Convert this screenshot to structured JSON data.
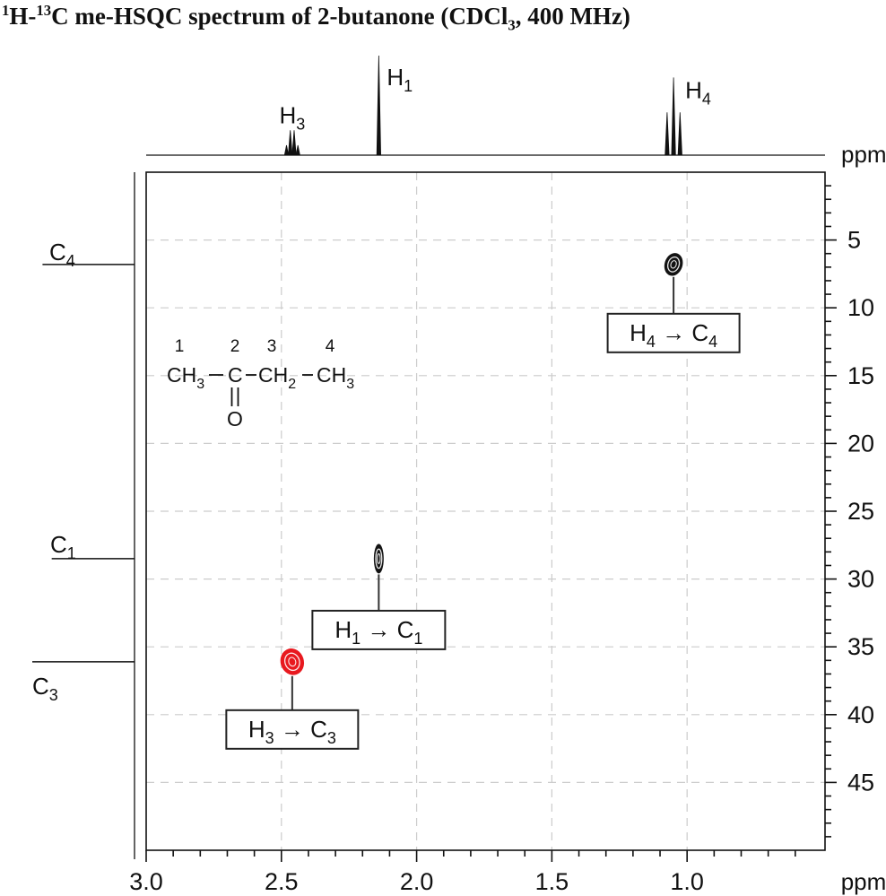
{
  "title": {
    "sup1": "1",
    "t1": "H-",
    "sup2": "13",
    "t2": "C me-HSQC spectrum of 2-butanone (CDCl",
    "sub1": "3",
    "t3": ", 400 MHz)"
  },
  "colors": {
    "ink": "#111111",
    "grid": "#cccccc",
    "red_peak": "#e8191f",
    "box_border": "#222222",
    "background": "#ffffff"
  },
  "chart_data": {
    "type": "scatter",
    "description": "2D 1H-13C multiplicity-edited HSQC NMR spectrum of 2-butanone in CDCl3 at 400 MHz",
    "x_axis": {
      "label": "ppm",
      "nucleus": "1H",
      "range": [
        3.0,
        0.49
      ],
      "major_ticks": [
        3.0,
        2.5,
        2.0,
        1.5,
        1.0
      ],
      "minor_tick_step": 0.1
    },
    "y_axis": {
      "label": "ppm",
      "nucleus": "13C",
      "range": [
        0,
        50
      ],
      "major_ticks": [
        5,
        10,
        15,
        20,
        25,
        30,
        35,
        40,
        45
      ],
      "minor_tick_step": 1
    },
    "gridlines": {
      "style": "dashed",
      "vertical_at": [
        2.5,
        2.0,
        1.5,
        1.0
      ],
      "horizontal_at": [
        5,
        10,
        15,
        20,
        25,
        30,
        35,
        40,
        45
      ]
    },
    "cross_peaks": [
      {
        "id": "h4-c4",
        "h_ppm": 1.05,
        "c_ppm": 6.8,
        "phase": "positive",
        "color": "#131313",
        "label": {
          "from_base": "H",
          "from_sub": "4",
          "arrow": "→",
          "to_base": "C",
          "to_sub": "4"
        }
      },
      {
        "id": "h1-c1",
        "h_ppm": 2.14,
        "c_ppm": 28.5,
        "phase": "positive",
        "color": "#131313",
        "label": {
          "from_base": "H",
          "from_sub": "1",
          "arrow": "→",
          "to_base": "C",
          "to_sub": "1"
        }
      },
      {
        "id": "h3-c3",
        "h_ppm": 2.46,
        "c_ppm": 36.1,
        "phase": "negative",
        "color": "#e8191f",
        "label": {
          "from_base": "H",
          "from_sub": "3",
          "arrow": "→",
          "to_base": "C",
          "to_sub": "3"
        }
      }
    ],
    "proton_trace": {
      "axis_label": "ppm",
      "peaks": [
        {
          "base": "H",
          "sub": "3",
          "ppm": 2.46,
          "multiplicity": "quartet",
          "lines": [
            {
              "offset_ppm": -0.021,
              "intensity": 0.1
            },
            {
              "offset_ppm": -0.007,
              "intensity": 0.25
            },
            {
              "offset_ppm": 0.007,
              "intensity": 0.25
            },
            {
              "offset_ppm": 0.021,
              "intensity": 0.1
            }
          ]
        },
        {
          "base": "H",
          "sub": "1",
          "ppm": 2.14,
          "multiplicity": "singlet",
          "lines": [
            {
              "offset_ppm": 0,
              "intensity": 1.0
            }
          ]
        },
        {
          "base": "H",
          "sub": "4",
          "ppm": 1.05,
          "multiplicity": "triplet",
          "lines": [
            {
              "offset_ppm": -0.024,
              "intensity": 0.43
            },
            {
              "offset_ppm": 0,
              "intensity": 0.78
            },
            {
              "offset_ppm": 0.024,
              "intensity": 0.43
            }
          ]
        }
      ]
    },
    "carbon_trace": {
      "axis_label": "ppm",
      "peaks": [
        {
          "base": "C",
          "sub": "4",
          "ppm": 6.8,
          "intensity": 0.9,
          "label_side": "above"
        },
        {
          "base": "C",
          "sub": "1",
          "ppm": 28.5,
          "intensity": 0.81,
          "label_side": "above"
        },
        {
          "base": "C",
          "sub": "3",
          "ppm": 36.1,
          "intensity": 1.0,
          "label_side": "below"
        }
      ]
    }
  },
  "molecule": {
    "name": "2-butanone",
    "position_numbers": [
      "1",
      "2",
      "3",
      "4"
    ],
    "groups": [
      {
        "base": "CH",
        "sub": "3"
      },
      {
        "base": "C",
        "sub": ""
      },
      {
        "base": "CH",
        "sub": "2"
      },
      {
        "base": "CH",
        "sub": "3"
      }
    ],
    "carbonyl_oxygen": "O"
  }
}
